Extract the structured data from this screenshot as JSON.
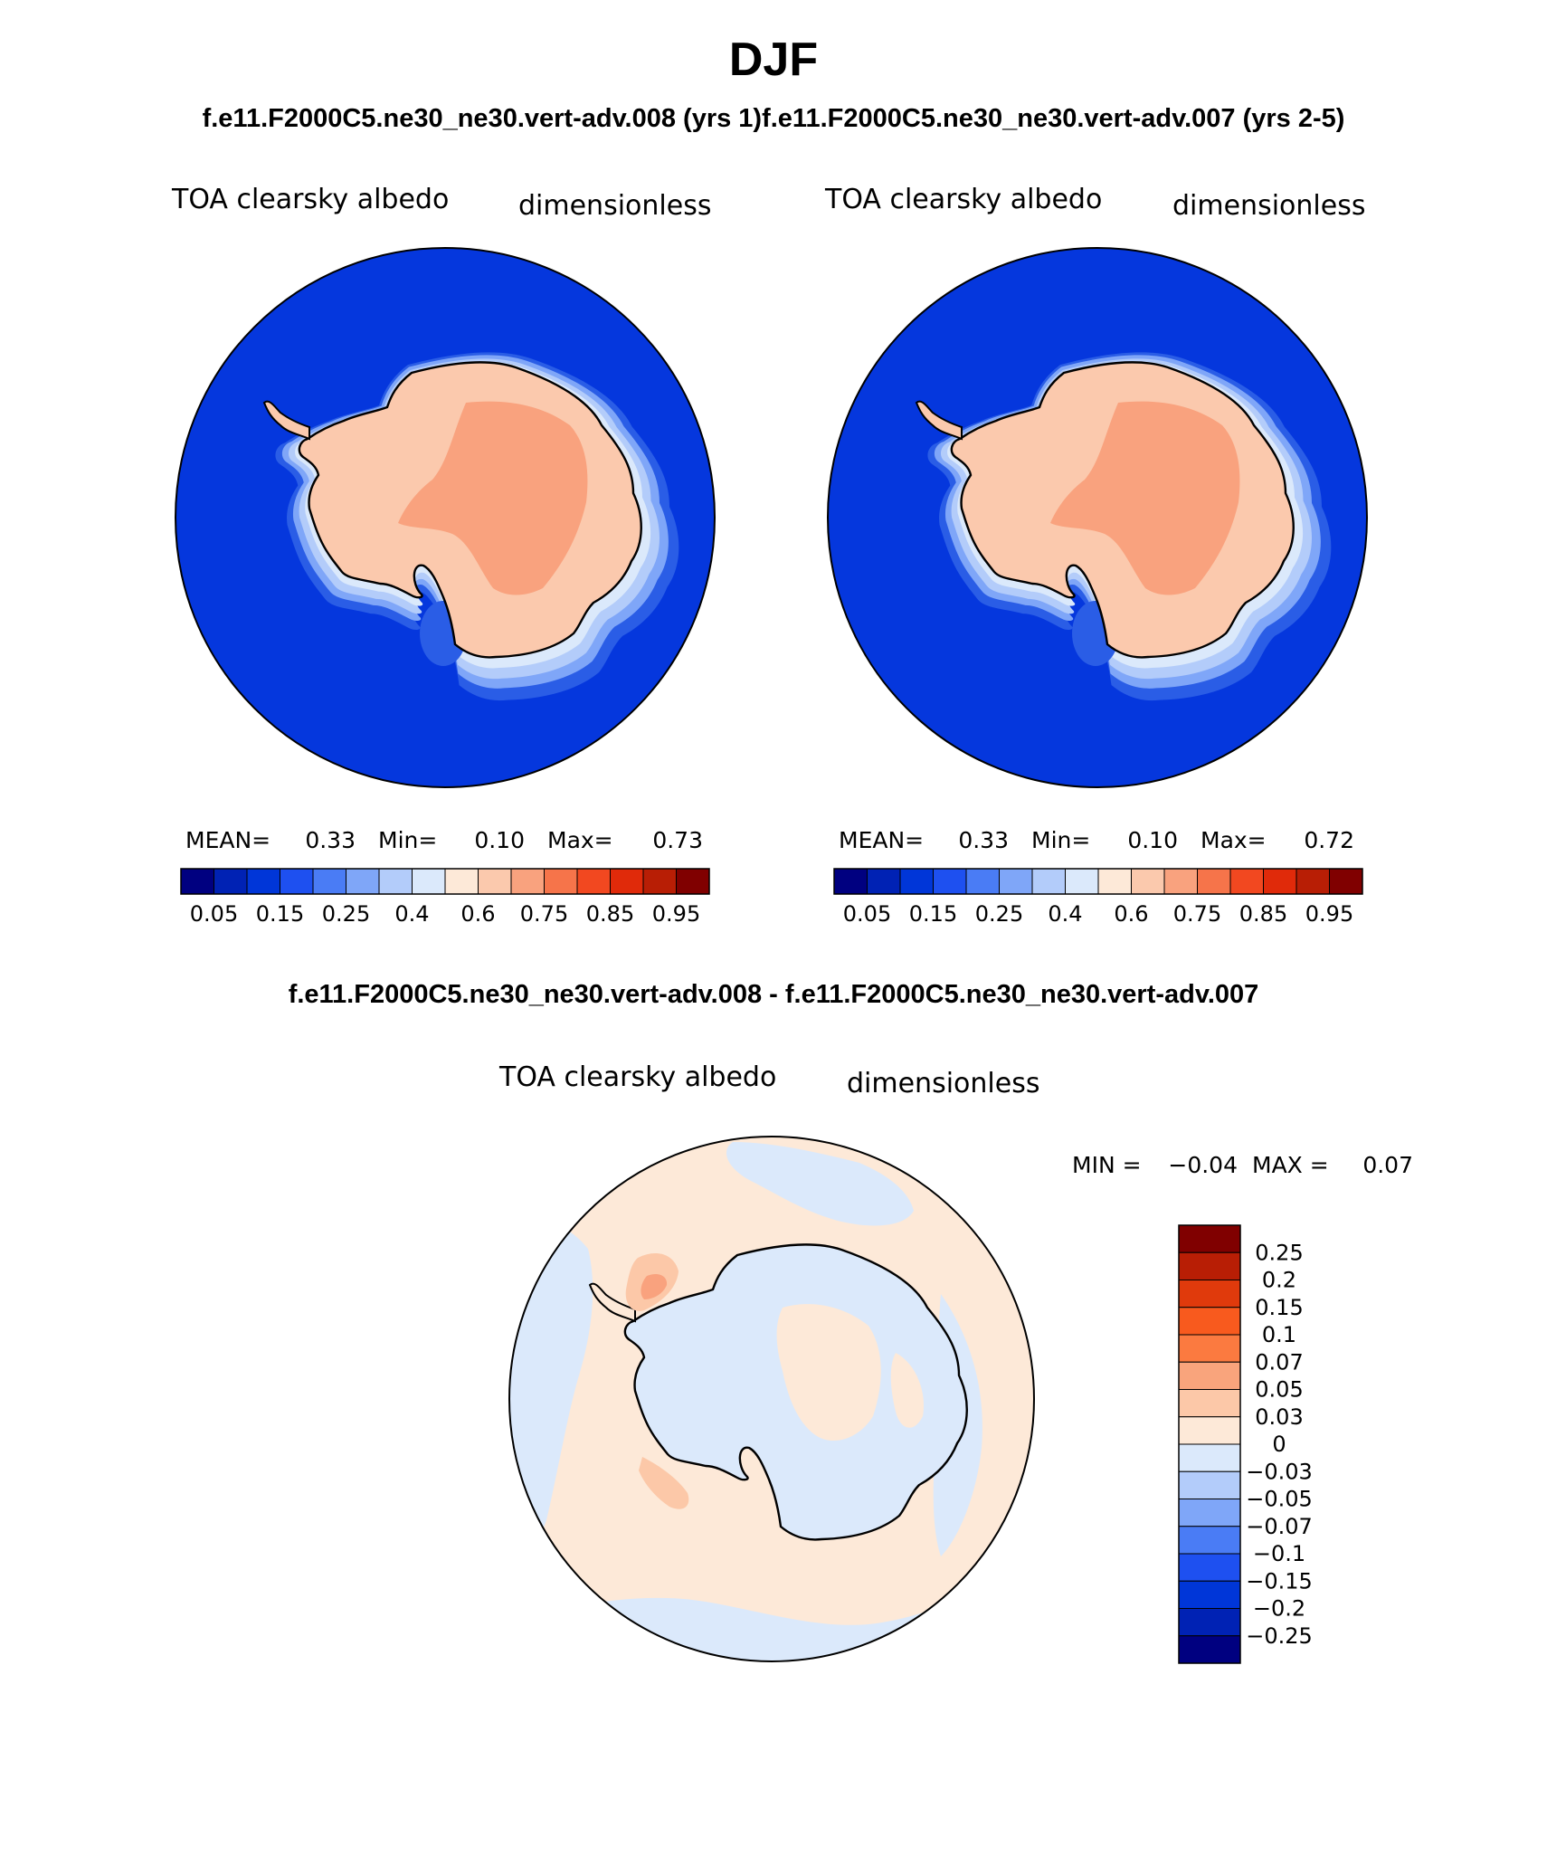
{
  "page_title": "DJF",
  "top_subtitle": "f.e11.F2000C5.ne30_ne30.vert-adv.008 (yrs 1)f.e11.F2000C5.ne30_ne30.vert-adv.007 (yrs 2-5)",
  "diff_title": "f.e11.F2000C5.ne30_ne30.vert-adv.008 - f.e11.F2000C5.ne30_ne30.vert-adv.007",
  "panels": [
    {
      "variable": "TOA clearsky albedo",
      "units": "dimensionless",
      "stats": {
        "mean_label": "MEAN=",
        "mean": "0.33",
        "min_label": "Min=",
        "min": "0.10",
        "max_label": "Max=",
        "max": "0.73"
      }
    },
    {
      "variable": "TOA clearsky albedo",
      "units": "dimensionless",
      "stats": {
        "mean_label": "MEAN=",
        "mean": "0.33",
        "min_label": "Min=",
        "min": "0.10",
        "max_label": "Max=",
        "max": "0.72"
      }
    },
    {
      "variable": "TOA clearsky albedo",
      "units": "dimensionless",
      "stats": {
        "min_label": "MIN =",
        "min": "−0.04",
        "max_label": "MAX =",
        "max": "0.07"
      }
    }
  ],
  "colorbars": {
    "absolute": {
      "colors": [
        "#000080",
        "#0022b4",
        "#0036d8",
        "#1e50f0",
        "#4a7cf5",
        "#7fa6f8",
        "#b3ccfa",
        "#dbe9fb",
        "#fde9d8",
        "#fbc9ad",
        "#f9a27e",
        "#f6744a",
        "#f24820",
        "#e02a0a",
        "#b81e05",
        "#800000"
      ],
      "labels": [
        "0.05",
        "0.15",
        "0.25",
        "0.4",
        "0.6",
        "0.75",
        "0.85",
        "0.95"
      ]
    },
    "difference": {
      "colors": [
        "#800000",
        "#b81e05",
        "#e03a0c",
        "#f85a1e",
        "#fb7a40",
        "#f9a47c",
        "#fcc8a8",
        "#fde9d8",
        "#dbe9fb",
        "#b3ccfa",
        "#7fa6f8",
        "#4a7cf5",
        "#1e50f0",
        "#0036d8",
        "#0022b4",
        "#000080"
      ],
      "labels": [
        "0.25",
        "0.2",
        "0.15",
        "0.1",
        "0.07",
        "0.05",
        "0.03",
        "0",
        "−0.03",
        "−0.05",
        "−0.07",
        "−0.1",
        "−0.15",
        "−0.2",
        "−0.25"
      ]
    }
  },
  "map_colors": {
    "ocean_abs": "#0537dd",
    "ice_ring1": "#2a5de6",
    "ice_ring2": "#7fa6f8",
    "ice_ring3": "#b3ccfa",
    "ice_ring4": "#dbe9fb",
    "land_abs": "#fbc9ad",
    "plateau_abs": "#f9a27e",
    "diff_pos": "#fde9d8",
    "diff_neg": "#dbe9fb",
    "diff_hot": "#f9a27e"
  }
}
